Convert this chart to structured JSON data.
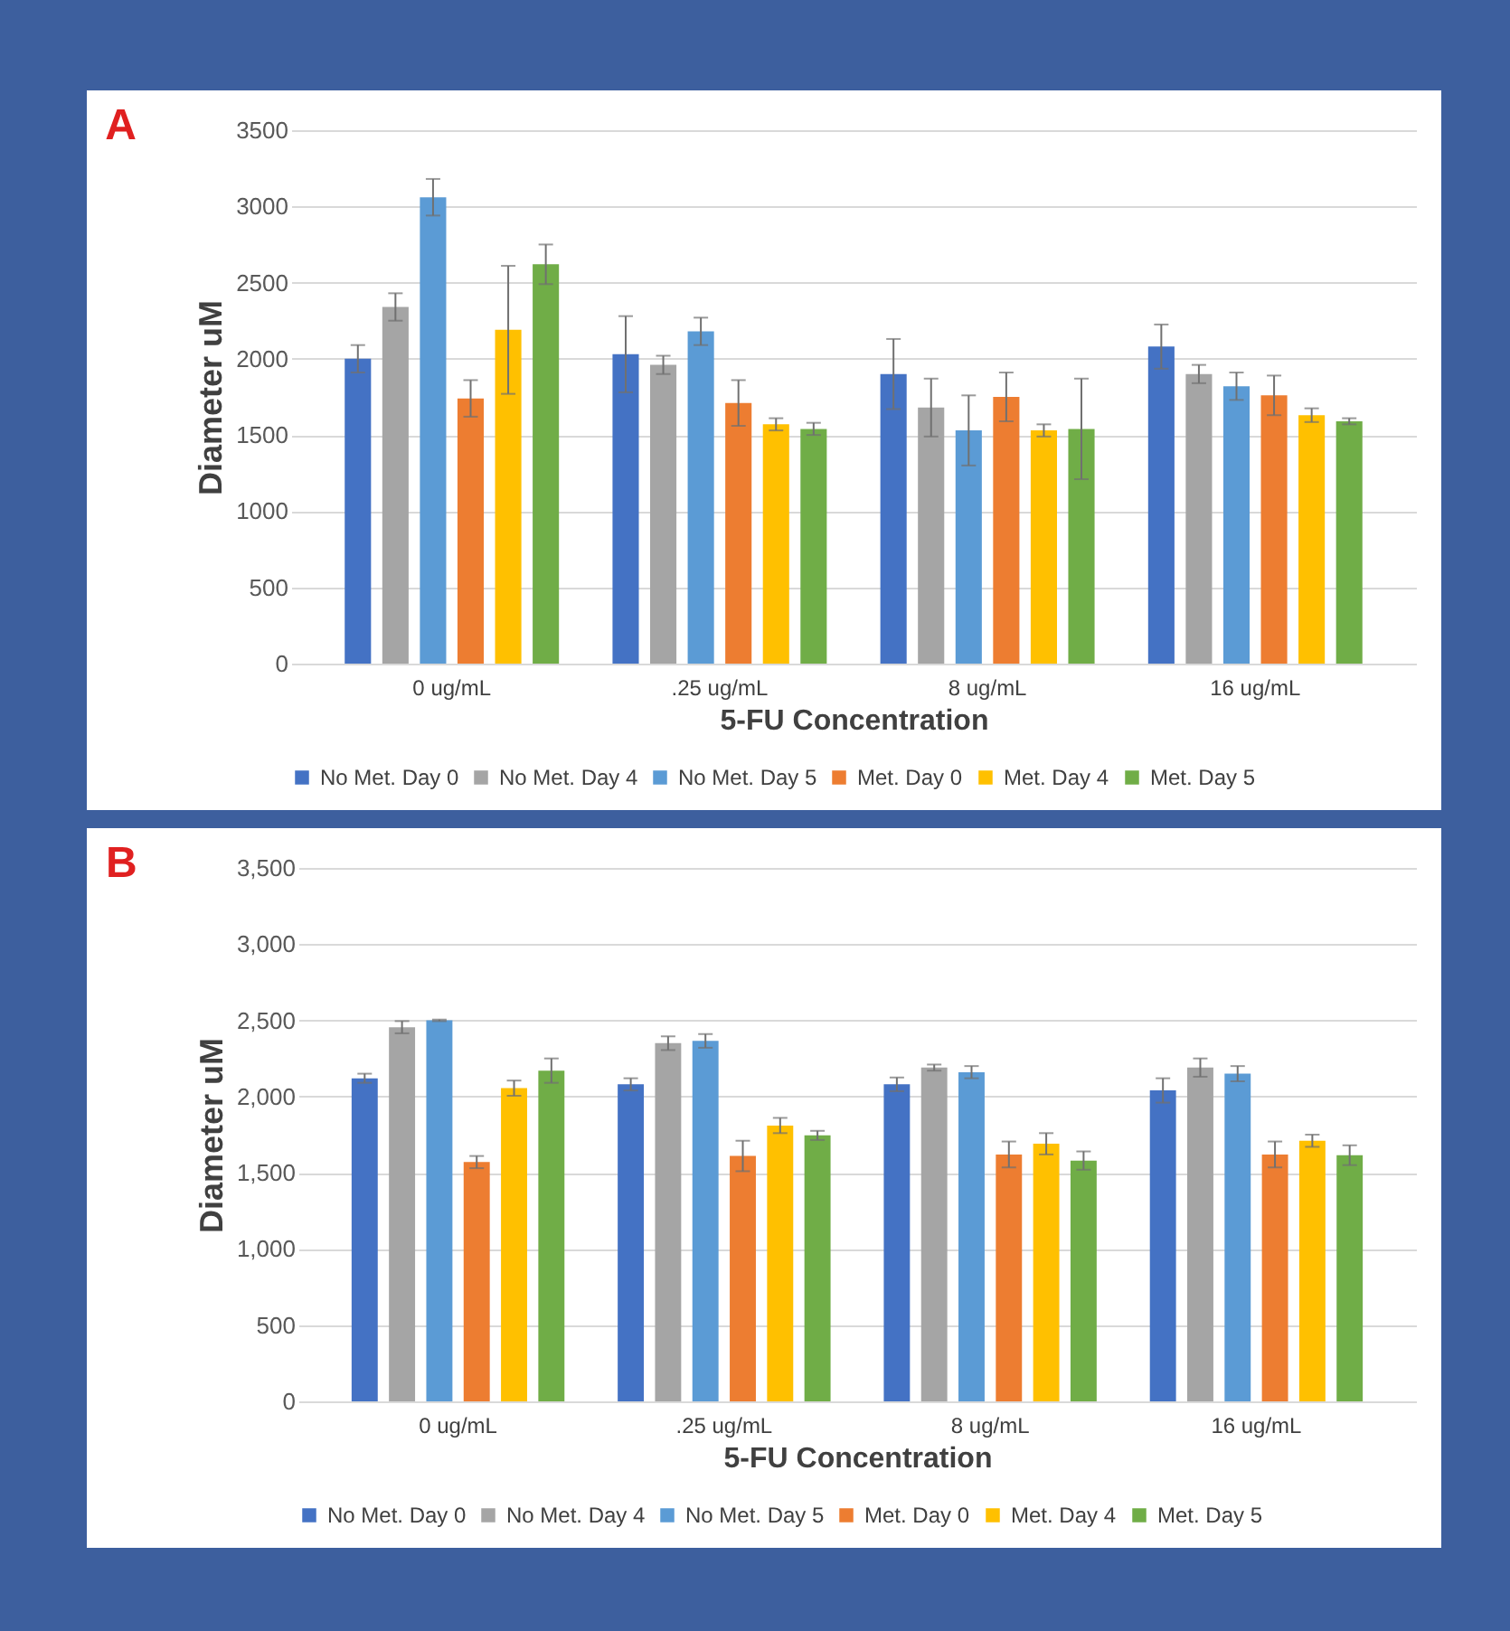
{
  "chart_data": [
    {
      "type": "bar",
      "title": "A",
      "xlabel": "5-FU Concentration",
      "ylabel": "Diameter uM",
      "categories": [
        "0 ug/mL",
        ".25 ug/mL",
        "8 ug/mL",
        "16 ug/mL"
      ],
      "ylim": [
        0,
        3500
      ],
      "yticks": [
        0,
        500,
        1000,
        1500,
        2000,
        2500,
        3000,
        3500
      ],
      "grid": "y",
      "legend": "bottom",
      "series": [
        {
          "name": "No Met. Day 0",
          "color": "#4472c4",
          "values": [
            2000,
            2030,
            1900,
            2080
          ],
          "errors": [
            90,
            250,
            230,
            145
          ]
        },
        {
          "name": "No Met. Day 4",
          "color": "#a5a5a5",
          "values": [
            2340,
            1960,
            1680,
            1900
          ],
          "errors": [
            90,
            60,
            190,
            60
          ]
        },
        {
          "name": "No Met. Day 5",
          "color": "#5b9bd5",
          "values": [
            3060,
            2180,
            1530,
            1820
          ],
          "errors": [
            120,
            90,
            230,
            90
          ]
        },
        {
          "name": "Met. Day 0",
          "color": "#ed7d31",
          "values": [
            1740,
            1710,
            1750,
            1760
          ],
          "errors": [
            120,
            150,
            160,
            130
          ]
        },
        {
          "name": "Met. Day 4",
          "color": "#ffc000",
          "values": [
            2190,
            1570,
            1530,
            1630
          ],
          "errors": [
            420,
            40,
            40,
            45
          ]
        },
        {
          "name": "Met. Day 5",
          "color": "#70ad47",
          "values": [
            2620,
            1540,
            1540,
            1590
          ],
          "errors": [
            130,
            40,
            330,
            20
          ]
        }
      ]
    },
    {
      "type": "bar",
      "title": "B",
      "xlabel": "5-FU Concentration",
      "ylabel": "Diameter uM",
      "categories": [
        "0 ug/mL",
        ".25 ug/mL",
        "8 ug/mL",
        "16 ug/mL"
      ],
      "ylim": [
        0,
        3500
      ],
      "yticks": [
        0,
        500,
        {
          "value": 1000,
          "label": "1,000"
        },
        {
          "value": 1500,
          "label": "1,500"
        },
        {
          "value": 2000,
          "label": "2,000"
        },
        {
          "value": 2500,
          "label": "2,500"
        },
        {
          "value": 3000,
          "label": "3,000"
        },
        {
          "value": 3500,
          "label": "3,500"
        }
      ],
      "grid": "y",
      "legend": "bottom",
      "series": [
        {
          "name": "No Met. Day 0",
          "color": "#4472c4",
          "values": [
            2120,
            2080,
            2080,
            2040
          ],
          "errors": [
            30,
            40,
            45,
            80
          ]
        },
        {
          "name": "No Met. Day 4",
          "color": "#a5a5a5",
          "values": [
            2455,
            2350,
            2190,
            2190
          ],
          "errors": [
            40,
            45,
            20,
            60
          ]
        },
        {
          "name": "No Met. Day 5",
          "color": "#5b9bd5",
          "values": [
            2500,
            2365,
            2160,
            2150
          ],
          "errors": [
            5,
            45,
            40,
            50
          ]
        },
        {
          "name": "Met. Day 0",
          "color": "#ed7d31",
          "values": [
            1570,
            1610,
            1620,
            1620
          ],
          "errors": [
            40,
            100,
            85,
            85
          ]
        },
        {
          "name": "Met. Day 4",
          "color": "#ffc000",
          "values": [
            2055,
            1810,
            1690,
            1710
          ],
          "errors": [
            50,
            50,
            70,
            40
          ]
        },
        {
          "name": "Met. Day 5",
          "color": "#70ad47",
          "values": [
            2170,
            1745,
            1580,
            1615
          ],
          "errors": [
            80,
            30,
            60,
            65
          ]
        }
      ]
    }
  ]
}
